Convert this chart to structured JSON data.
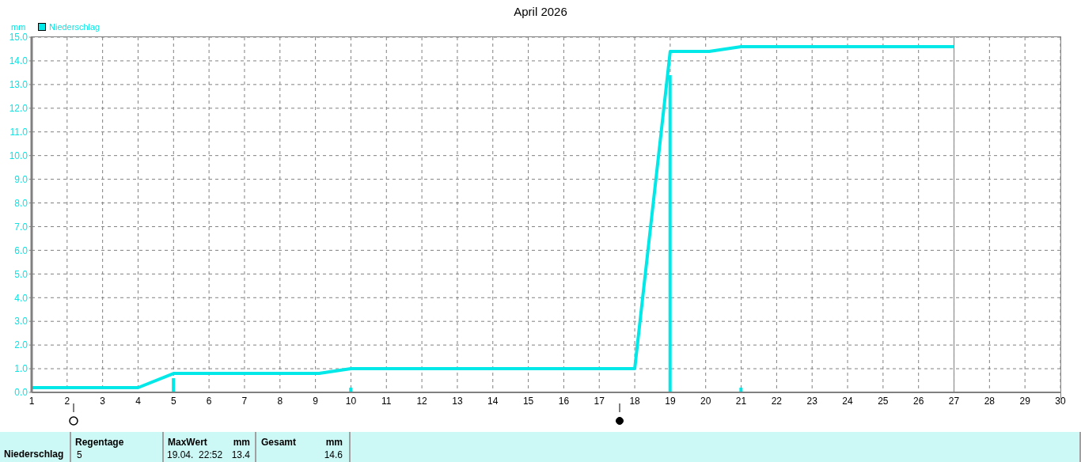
{
  "chart_data": {
    "type": "line",
    "title": "April 2026",
    "ylabel": "mm",
    "xlim": [
      1,
      30
    ],
    "xticks": [
      1,
      2,
      3,
      4,
      5,
      6,
      7,
      8,
      9,
      10,
      11,
      12,
      13,
      14,
      15,
      16,
      17,
      18,
      19,
      20,
      21,
      22,
      23,
      24,
      25,
      26,
      27,
      28,
      29,
      30
    ],
    "ylim": [
      0,
      15
    ],
    "yticks": [
      {
        "value": 0,
        "label": "0.0"
      },
      {
        "value": 1,
        "label": "1.0"
      },
      {
        "value": 2,
        "label": "2.0"
      },
      {
        "value": 3,
        "label": "3.0"
      },
      {
        "value": 4,
        "label": "4.0"
      },
      {
        "value": 5,
        "label": "5.0"
      },
      {
        "value": 6,
        "label": "6.0"
      },
      {
        "value": 7,
        "label": "7.0"
      },
      {
        "value": 8,
        "label": "8.0"
      },
      {
        "value": 9,
        "label": "9.0"
      },
      {
        "value": 10,
        "label": "10.0"
      },
      {
        "value": 11,
        "label": "11.0"
      },
      {
        "value": 12,
        "label": "12.0"
      },
      {
        "value": 13,
        "label": "13.0"
      },
      {
        "value": 14,
        "label": "14.0"
      },
      {
        "value": 15,
        "label": "15.0"
      }
    ],
    "series": [
      {
        "name": "Niederschlag",
        "color": "#00e8e8",
        "x": [
          1,
          4,
          5,
          9.1,
          10,
          18,
          19,
          20.1,
          21,
          27
        ],
        "values": [
          0.2,
          0.2,
          0.8,
          0.8,
          1.0,
          1.0,
          14.4,
          14.4,
          14.6,
          14.6
        ]
      },
      {
        "type": "bar",
        "color": "#00e8e8",
        "x": [
          5,
          10,
          19,
          21
        ],
        "values": [
          0.6,
          0.2,
          13.4,
          0.2
        ]
      }
    ],
    "ref_lines": [
      {
        "axis": "x",
        "value": 27,
        "color": "#808080",
        "line_style": "solid"
      }
    ],
    "grid": true,
    "legend": "top left",
    "marker": "none",
    "line_style": "solid",
    "annotations": [
      "Niederschlag",
      "Regentage",
      "5",
      "MaxWert",
      "mm",
      "19.04.  22:52",
      "13.4",
      "Gesamt",
      "mm",
      "14.6"
    ]
  }
}
